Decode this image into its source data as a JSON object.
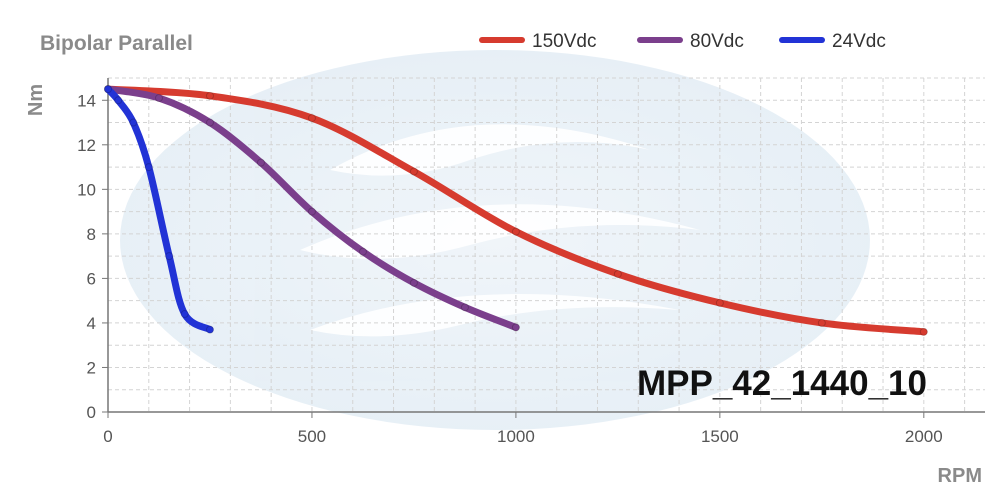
{
  "chart_data": {
    "type": "line",
    "title": "Bipolar Parallel",
    "xlabel": "RPM",
    "ylabel": "Nm",
    "xlim": [
      0,
      2150
    ],
    "ylim": [
      0,
      15
    ],
    "x_ticks": [
      "0",
      "500",
      "1000",
      "1500",
      "2000"
    ],
    "y_ticks": [
      "0",
      "2",
      "4",
      "6",
      "8",
      "10",
      "12",
      "14"
    ],
    "grid": true,
    "legend_position": "top-right",
    "annotation": "MPP_42_1440_10",
    "series": [
      {
        "name": "150Vdc",
        "color": "#d63b2f",
        "points": [
          [
            0,
            14.5
          ],
          [
            250,
            14.2
          ],
          [
            500,
            13.2
          ],
          [
            750,
            10.8
          ],
          [
            1000,
            8.1
          ],
          [
            1250,
            6.2
          ],
          [
            1500,
            4.9
          ],
          [
            1750,
            4.0
          ],
          [
            2000,
            3.6
          ]
        ]
      },
      {
        "name": "80Vdc",
        "color": "#7b3f8c",
        "points": [
          [
            0,
            14.5
          ],
          [
            125,
            14.1
          ],
          [
            250,
            13.0
          ],
          [
            375,
            11.2
          ],
          [
            500,
            9.0
          ],
          [
            625,
            7.2
          ],
          [
            750,
            5.8
          ],
          [
            875,
            4.7
          ],
          [
            1000,
            3.8
          ]
        ]
      },
      {
        "name": "24Vdc",
        "color": "#2233d6",
        "points": [
          [
            0,
            14.5
          ],
          [
            25,
            14.0
          ],
          [
            62,
            13.0
          ],
          [
            100,
            11.0
          ],
          [
            150,
            7.0
          ],
          [
            188,
            4.4
          ],
          [
            250,
            3.7
          ]
        ]
      }
    ]
  }
}
